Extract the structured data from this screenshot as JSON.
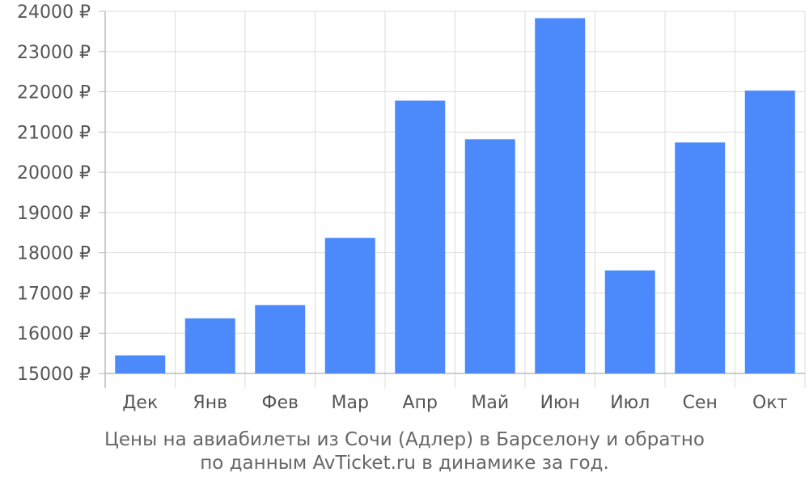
{
  "chart_data": {
    "type": "bar",
    "title": "",
    "xlabel": "",
    "ylabel": "",
    "categories": [
      "Дек",
      "Янв",
      "Фев",
      "Мар",
      "Апр",
      "Май",
      "Июн",
      "Июл",
      "Сен",
      "Окт"
    ],
    "values": [
      15450,
      16370,
      16700,
      18370,
      21780,
      20820,
      23830,
      17560,
      20740,
      22030
    ],
    "ylim": [
      15000,
      24000
    ],
    "y_ticks": [
      15000,
      16000,
      17000,
      18000,
      19000,
      20000,
      21000,
      22000,
      23000,
      24000
    ],
    "y_tick_suffix": " ₽",
    "grid": true,
    "colors": {
      "bar": "#4c8afc",
      "grid": "#dddddd",
      "axis": "#bbbbbb",
      "text": "#555555"
    }
  },
  "caption": {
    "line1": "Цены на авиабилеты из Сочи (Адлер) в Барселону и обратно",
    "line2": "по данным AvTicket.ru в динамике за год."
  }
}
